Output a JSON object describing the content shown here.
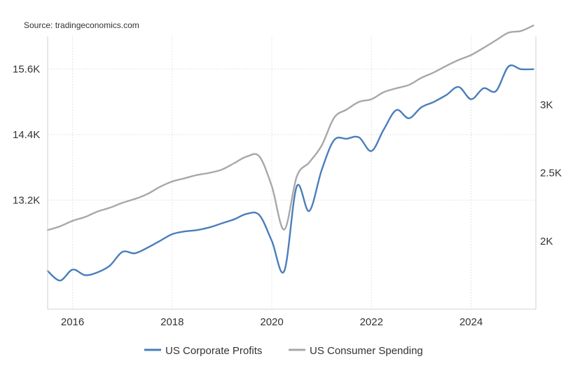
{
  "chart_data": {
    "type": "line",
    "source": "Source: tradingeconomics.com",
    "x_ticks": [
      {
        "x": 2016,
        "label": "2016"
      },
      {
        "x": 2018,
        "label": "2018"
      },
      {
        "x": 2020,
        "label": "2020"
      },
      {
        "x": 2022,
        "label": "2022"
      },
      {
        "x": 2024,
        "label": "2024"
      }
    ],
    "xlim": [
      2015.5,
      2025.3
    ],
    "left_axis": {
      "ylim": [
        11200,
        16200
      ],
      "ticks": [
        {
          "value": 13200,
          "label": "13.2K"
        },
        {
          "value": 14400,
          "label": "14.4K"
        },
        {
          "value": 15600,
          "label": "15.6K"
        }
      ]
    },
    "right_axis": {
      "ylim": [
        1500,
        3500
      ],
      "ticks": [
        {
          "value": 2000,
          "label": "2K"
        },
        {
          "value": 2500,
          "label": "2.5K"
        },
        {
          "value": 3000,
          "label": "3K"
        }
      ]
    },
    "series": [
      {
        "name": "US Corporate Profits",
        "color": "#4a7ebb",
        "axis": "right",
        "points": [
          [
            2015.5,
            1780
          ],
          [
            2015.75,
            1710
          ],
          [
            2016.0,
            1790
          ],
          [
            2016.25,
            1750
          ],
          [
            2016.5,
            1770
          ],
          [
            2016.75,
            1820
          ],
          [
            2017.0,
            1920
          ],
          [
            2017.25,
            1910
          ],
          [
            2017.5,
            1950
          ],
          [
            2017.75,
            2000
          ],
          [
            2018.0,
            2050
          ],
          [
            2018.25,
            2070
          ],
          [
            2018.5,
            2080
          ],
          [
            2018.75,
            2100
          ],
          [
            2019.0,
            2130
          ],
          [
            2019.25,
            2160
          ],
          [
            2019.5,
            2200
          ],
          [
            2019.75,
            2190
          ],
          [
            2020.0,
            2000
          ],
          [
            2020.25,
            1780
          ],
          [
            2020.5,
            2400
          ],
          [
            2020.75,
            2220
          ],
          [
            2021.0,
            2520
          ],
          [
            2021.25,
            2740
          ],
          [
            2021.5,
            2750
          ],
          [
            2021.75,
            2760
          ],
          [
            2022.0,
            2660
          ],
          [
            2022.25,
            2820
          ],
          [
            2022.5,
            2960
          ],
          [
            2022.75,
            2900
          ],
          [
            2023.0,
            2980
          ],
          [
            2023.25,
            3020
          ],
          [
            2023.5,
            3070
          ],
          [
            2023.75,
            3130
          ],
          [
            2024.0,
            3040
          ],
          [
            2024.25,
            3120
          ],
          [
            2024.5,
            3100
          ],
          [
            2024.75,
            3280
          ],
          [
            2025.0,
            3260
          ],
          [
            2025.25,
            3260
          ]
        ]
      },
      {
        "name": "US Consumer Spending",
        "color": "#a8a8a8",
        "axis": "left",
        "points": [
          [
            2015.5,
            12650
          ],
          [
            2015.75,
            12720
          ],
          [
            2016.0,
            12820
          ],
          [
            2016.25,
            12890
          ],
          [
            2016.5,
            12990
          ],
          [
            2016.75,
            13060
          ],
          [
            2017.0,
            13150
          ],
          [
            2017.25,
            13220
          ],
          [
            2017.5,
            13310
          ],
          [
            2017.75,
            13440
          ],
          [
            2018.0,
            13540
          ],
          [
            2018.25,
            13600
          ],
          [
            2018.5,
            13660
          ],
          [
            2018.75,
            13700
          ],
          [
            2019.0,
            13760
          ],
          [
            2019.25,
            13880
          ],
          [
            2019.5,
            14000
          ],
          [
            2019.75,
            14000
          ],
          [
            2020.0,
            13450
          ],
          [
            2020.25,
            12660
          ],
          [
            2020.5,
            13630
          ],
          [
            2020.75,
            13890
          ],
          [
            2021.0,
            14200
          ],
          [
            2021.25,
            14710
          ],
          [
            2021.5,
            14860
          ],
          [
            2021.75,
            15000
          ],
          [
            2022.0,
            15050
          ],
          [
            2022.25,
            15180
          ],
          [
            2022.5,
            15250
          ],
          [
            2022.75,
            15310
          ],
          [
            2023.0,
            15440
          ],
          [
            2023.25,
            15540
          ],
          [
            2023.5,
            15660
          ],
          [
            2023.75,
            15770
          ],
          [
            2024.0,
            15860
          ],
          [
            2024.25,
            15990
          ],
          [
            2024.5,
            16130
          ],
          [
            2024.75,
            16270
          ],
          [
            2025.0,
            16300
          ],
          [
            2025.25,
            16400
          ]
        ]
      }
    ],
    "legend": [
      {
        "name": "US Corporate Profits",
        "color": "#4a7ebb"
      },
      {
        "name": "US Consumer Spending",
        "color": "#a8a8a8"
      }
    ]
  }
}
